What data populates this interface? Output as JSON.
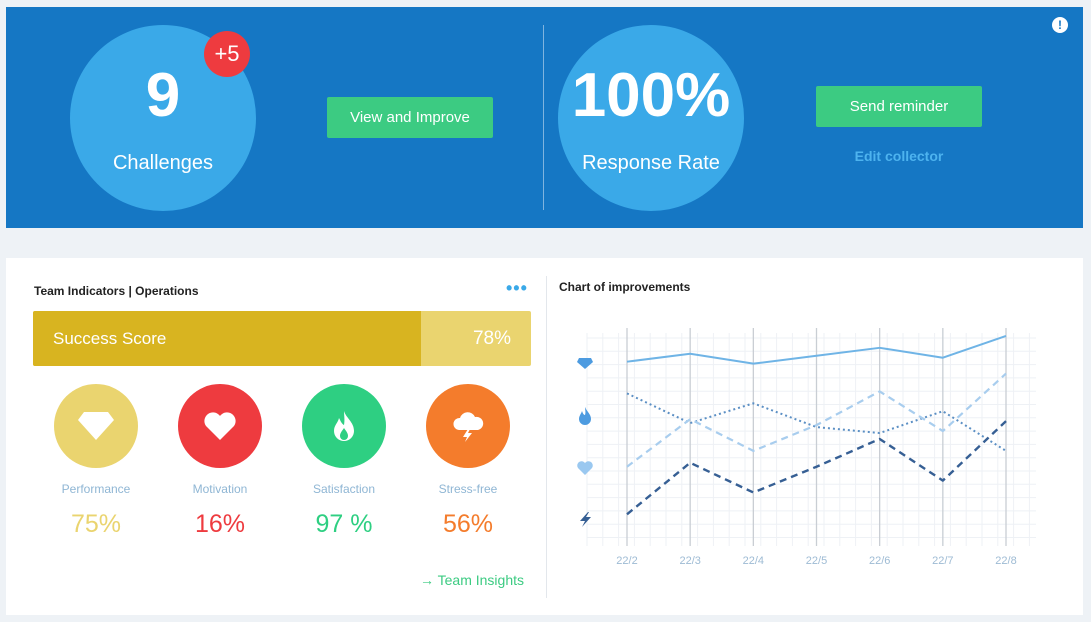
{
  "banner": {
    "challenges": {
      "count": "9",
      "label": "Challenges",
      "badge": "+5"
    },
    "view_button": "View and Improve",
    "response": {
      "rate": "100%",
      "label": "Response Rate"
    },
    "send_button": "Send reminder",
    "edit_link": "Edit collector",
    "info_icon": "exclamation-icon",
    "colors": {
      "bg": "#1577c4",
      "circle": "#3aa9e8",
      "button": "#3ccb82",
      "badge": "#ee3b3f"
    }
  },
  "indicators": {
    "title": "Team Indicators | Operations",
    "menu_icon": "more-dots-icon",
    "success": {
      "label": "Success Score",
      "value": "78%",
      "fraction": 0.78
    },
    "items": [
      {
        "name": "Performance",
        "value": "75%",
        "icon": "diamond-icon",
        "color": "#ead46f",
        "text_color": "#ead46f"
      },
      {
        "name": "Motivation",
        "value": "16%",
        "icon": "heart-icon",
        "color": "#ee3b3f",
        "text_color": "#ee3b3f"
      },
      {
        "name": "Satisfaction",
        "value": "97 %",
        "icon": "flame-icon",
        "color": "#2ecf82",
        "text_color": "#2ecf82"
      },
      {
        "name": "Stress-free",
        "value": "56%",
        "icon": "storm-cloud-icon",
        "color": "#f47c2c",
        "text_color": "#f47c2c"
      }
    ],
    "team_link": "→ Team Insights"
  },
  "chart_data": {
    "type": "line",
    "title": "Chart of improvements",
    "categories": [
      "22/2",
      "22/3",
      "22/4",
      "22/5",
      "22/6",
      "22/7",
      "22/8"
    ],
    "series": [
      {
        "icon": "diamond-icon",
        "style": "solid",
        "color": "#6fb4e6",
        "values": [
          93,
          97,
          92,
          96,
          100,
          95,
          106
        ]
      },
      {
        "icon": "flame-icon",
        "style": "dotted",
        "color": "#5b8fc4",
        "values": [
          77,
          62,
          72,
          60,
          57,
          68,
          48
        ]
      },
      {
        "icon": "heart-icon",
        "style": "dashed",
        "color": "#a8cdee",
        "values": [
          40,
          64,
          48,
          61,
          78,
          58,
          87
        ]
      },
      {
        "icon": "lightning-icon",
        "style": "dashed-bold",
        "color": "#365f94",
        "values": [
          16,
          42,
          27,
          40,
          54,
          33,
          63
        ]
      }
    ],
    "ylim": [
      0,
      110
    ],
    "grid": true
  }
}
